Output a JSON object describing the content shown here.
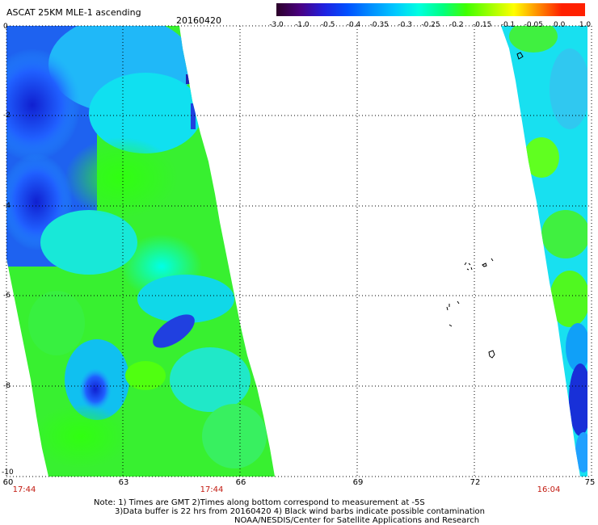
{
  "header": {
    "title": "ASCAT 25KM MLE-1 ascending",
    "date": "20160420"
  },
  "colorbar": {
    "labels": [
      "-3.0",
      "-1.0",
      "-0.5",
      "-0.4",
      "-0.35",
      "-0.3",
      "-0.25",
      "-0.2",
      "-0.15",
      "-0.1",
      "-0.05",
      "0.0",
      "1.0"
    ],
    "colors": [
      "#2b0028",
      "#4a0080",
      "#2020e0",
      "#0050ff",
      "#0090ff",
      "#00c8ff",
      "#00ffe0",
      "#00ff80",
      "#40ff00",
      "#a0ff00",
      "#ffff00",
      "#ff9000",
      "#ff2000"
    ]
  },
  "axes": {
    "x_ticks": [
      "60",
      "63",
      "66",
      "69",
      "72",
      "75"
    ],
    "y_ticks": [
      "0",
      "-2",
      "-4",
      "-6",
      "-8",
      "-10"
    ]
  },
  "swath_times": [
    "17:44",
    "17:44",
    "16:04"
  ],
  "notes": {
    "line1": "Note: 1) Times are GMT 2)Times along bottom correspond to measurement at -5S",
    "line2": "3)Data buffer is 22 hrs from 20160420 4) Black wind barbs indicate possible contamination",
    "line3": "NOAA/NESDIS/Center for Satellite Applications and Research"
  }
}
